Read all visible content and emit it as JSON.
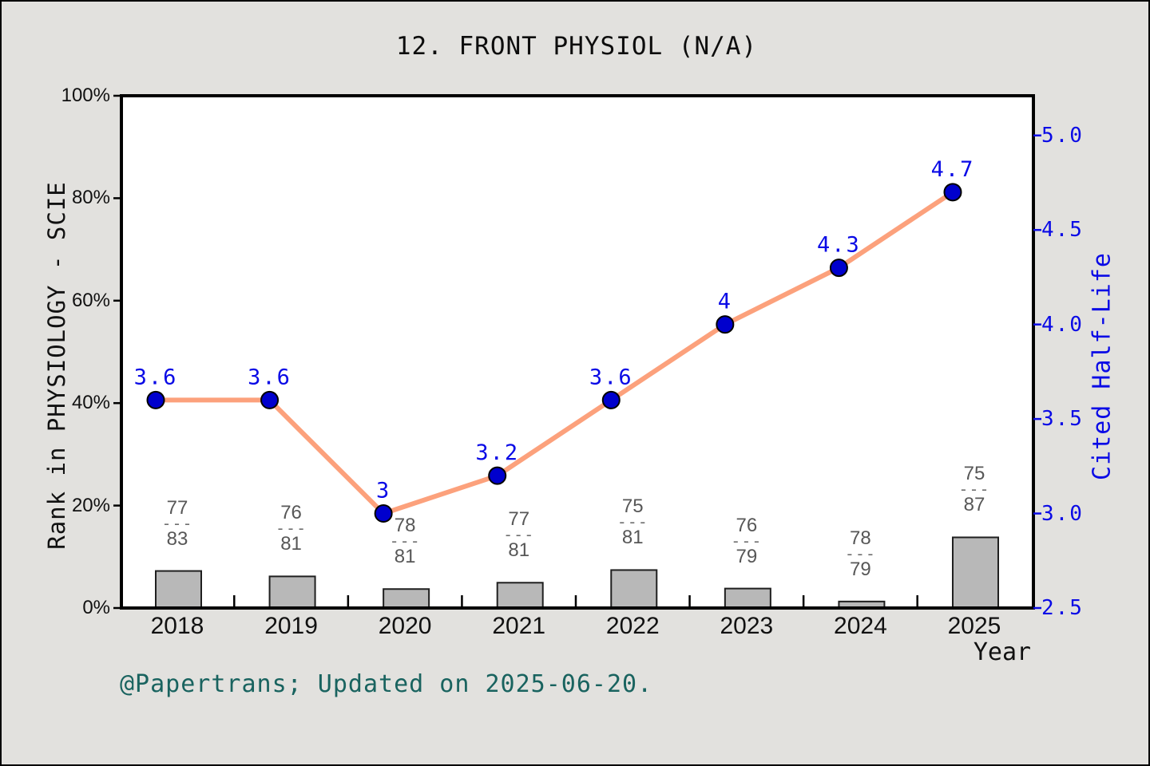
{
  "title": "12. FRONT PHYSIOL (N/A)",
  "footer": "@Papertrans; Updated on 2025-06-20.",
  "colors": {
    "background": "#e2e1de",
    "plot_background": "#ffffff",
    "spine": "#000000",
    "line": "#FCA17C",
    "marker_fill": "#0000CD",
    "marker_edge": "#000000",
    "value_label": "#0A0AE6",
    "right_axis": "#0A0AE6",
    "bar_fill": "#B8B8B8",
    "bar_edge": "#1f1f1f",
    "fraction_text": "#575757",
    "footer_text": "#19635F",
    "title_text": "#0d0d0d"
  },
  "chart_data": {
    "type": "line",
    "title": "12. FRONT PHYSIOL (N/A)",
    "x": [
      2018,
      2019,
      2020,
      2021,
      2022,
      2023,
      2024,
      2025
    ],
    "x_axis": {
      "label": "Year",
      "tick_labels": [
        "2018",
        "2019",
        "2020",
        "2021",
        "2022",
        "2023",
        "2024",
        "2025"
      ]
    },
    "left_axis": {
      "label": "Rank in PHYSIOLOGY - SCIE",
      "tick_labels": [
        "0%",
        "20%",
        "40%",
        "60%",
        "80%",
        "100%"
      ],
      "tick_values": [
        0,
        20,
        40,
        60,
        80,
        100
      ],
      "range": [
        0,
        100
      ]
    },
    "right_axis": {
      "label": "Cited Half-Life",
      "tick_labels": [
        "2.5",
        "3.0",
        "3.5",
        "4.0",
        "4.5",
        "5.0"
      ],
      "tick_values": [
        2.5,
        3.0,
        3.5,
        4.0,
        4.5,
        5.0
      ],
      "range": [
        2.5,
        5.21
      ]
    },
    "series": [
      {
        "name": "Cited Half-Life",
        "type": "line",
        "axis": "right",
        "values": [
          3.6,
          3.6,
          3.0,
          3.2,
          3.6,
          4.0,
          4.3,
          4.7
        ],
        "point_labels": [
          "3.6",
          "3.6",
          "3",
          "3.2",
          "3.6",
          "4",
          "4.3",
          "4.7"
        ]
      },
      {
        "name": "Rank in PHYSIOLOGY - SCIE",
        "type": "bar",
        "axis": "left",
        "rank_fractions": [
          {
            "numerator": 77,
            "denominator": 83
          },
          {
            "numerator": 76,
            "denominator": 81
          },
          {
            "numerator": 78,
            "denominator": 81
          },
          {
            "numerator": 77,
            "denominator": 81
          },
          {
            "numerator": 75,
            "denominator": 81
          },
          {
            "numerator": 76,
            "denominator": 79
          },
          {
            "numerator": 78,
            "denominator": 79
          },
          {
            "numerator": 75,
            "denominator": 87
          }
        ],
        "percent_values": [
          7.23,
          6.17,
          3.7,
          4.94,
          7.41,
          3.8,
          1.27,
          13.79
        ]
      }
    ],
    "legend": "none",
    "grid": false
  }
}
